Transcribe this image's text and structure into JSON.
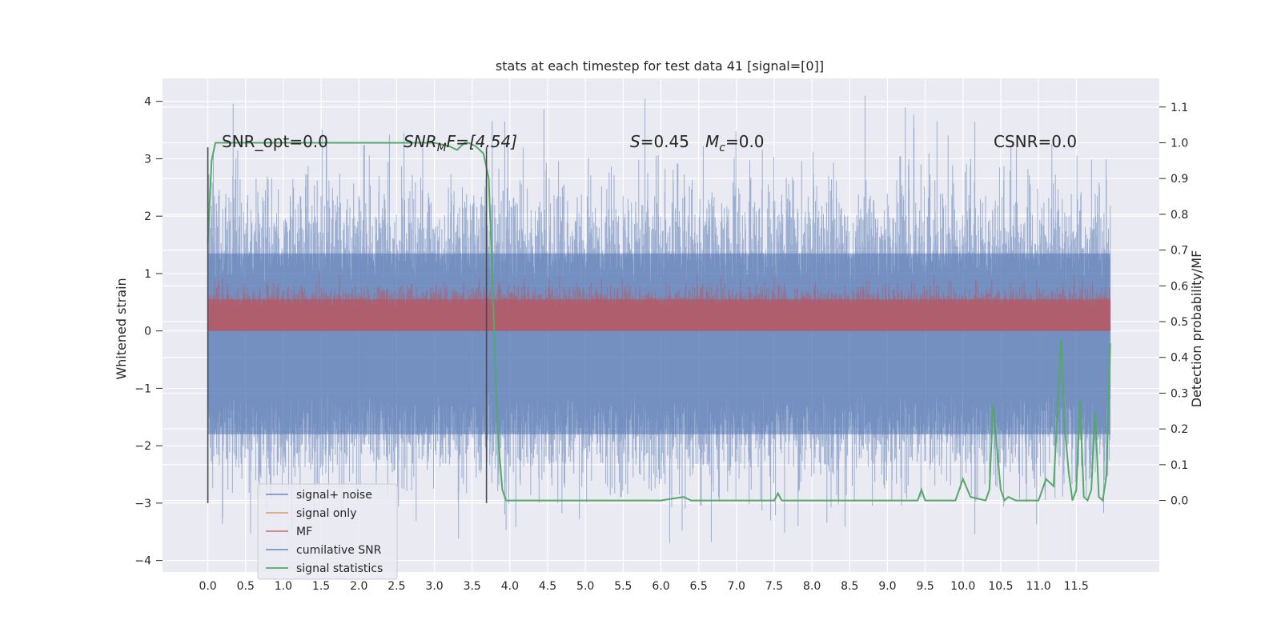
{
  "chart_data": {
    "type": "line",
    "title": "stats at each timestep for test data 41 [signal=[0]]",
    "xlabel": "",
    "ylabel": "Whitened strain",
    "ylabel_right": "Detection probability/MF",
    "xlim": [
      -0.6,
      12.6
    ],
    "ylim": [
      -4.2,
      4.4
    ],
    "ylim_right": [
      -0.2,
      1.18
    ],
    "x_ticks": [
      "0.0",
      "0.5",
      "1.0",
      "1.5",
      "2.0",
      "2.5",
      "3.0",
      "3.5",
      "4.0",
      "4.5",
      "5.0",
      "5.5",
      "6.0",
      "6.5",
      "7.0",
      "7.5",
      "8.0",
      "8.5",
      "9.0",
      "9.5",
      "10.0",
      "10.5",
      "11.0",
      "11.5"
    ],
    "y_ticks": [
      "4",
      "3",
      "2",
      "1",
      "0",
      "−1",
      "−2",
      "−3",
      "−4"
    ],
    "y_ticks_right": [
      "1.1",
      "1.0",
      "0.9",
      "0.8",
      "0.7",
      "0.6",
      "0.5",
      "0.4",
      "0.3",
      "0.2",
      "0.1",
      "0.0"
    ],
    "grid": true,
    "legend_position": "lower-left",
    "annotations": {
      "snr_opt": "SNR_opt=0.0",
      "snr_mf_sym": "SNR",
      "snr_mf_sub": "M",
      "snr_mf_rest": "F=[4.54]",
      "s_sym": "S",
      "s_val": "=0.45",
      "mc_sym": "M",
      "mc_sub": "c",
      "mc_val": "=0.0",
      "csnr": "CSNR=0.0"
    },
    "vlines": [
      0.0,
      3.69
    ],
    "series": [
      {
        "name": "signal+ noise",
        "color": "#4c72b0",
        "kind": "noise",
        "x_range": [
          0.0,
          11.95
        ],
        "band_lower": -1.8,
        "band_upper": 1.35,
        "max": 4.1,
        "min": -3.9
      },
      {
        "name": "signal only",
        "color": "#dd8452",
        "kind": "flat",
        "x_range": [
          0.0,
          11.95
        ],
        "value": 0.0
      },
      {
        "name": "MF",
        "color": "#c44e52",
        "kind": "noise",
        "x_range": [
          0.0,
          11.95
        ],
        "band_lower": 0.0,
        "band_upper": 0.55,
        "max": 1.0,
        "min": 0.0
      },
      {
        "name": "cumilative SNR",
        "color": "#4c72b0",
        "kind": "flat",
        "x_range": [
          0.0,
          11.95
        ],
        "value": 0.0
      },
      {
        "name": "signal statistics",
        "color": "#55a868",
        "axis": "right",
        "x": [
          0.0,
          0.05,
          0.1,
          0.2,
          0.5,
          1.0,
          2.0,
          3.0,
          3.2,
          3.3,
          3.4,
          3.45,
          3.55,
          3.65,
          3.72,
          3.78,
          3.82,
          3.85,
          3.9,
          3.95,
          4.0,
          4.2,
          4.5,
          5.0,
          6.0,
          6.3,
          6.4,
          6.5,
          6.6,
          6.8,
          7.5,
          7.55,
          7.6,
          7.7,
          8.0,
          9.0,
          9.4,
          9.45,
          9.5,
          9.6,
          9.9,
          10.0,
          10.1,
          10.3,
          10.35,
          10.4,
          10.5,
          10.55,
          10.6,
          10.7,
          10.8,
          11.0,
          11.1,
          11.2,
          11.3,
          11.35,
          11.4,
          11.45,
          11.5,
          11.55,
          11.6,
          11.65,
          11.7,
          11.75,
          11.8,
          11.85,
          11.9,
          11.95
        ],
        "y": [
          0.72,
          0.95,
          1.0,
          1.0,
          1.0,
          1.0,
          1.0,
          1.0,
          0.99,
          0.98,
          1.0,
          1.0,
          0.99,
          0.97,
          0.9,
          0.55,
          0.3,
          0.16,
          0.03,
          0.0,
          0.0,
          0.0,
          0.0,
          0.0,
          0.0,
          0.01,
          0.0,
          0.0,
          0.0,
          0.0,
          0.0,
          0.02,
          0.0,
          0.0,
          0.0,
          0.0,
          0.0,
          0.03,
          0.0,
          0.0,
          0.0,
          0.06,
          0.01,
          0.0,
          0.03,
          0.27,
          0.03,
          0.0,
          0.01,
          0.0,
          0.0,
          0.0,
          0.06,
          0.04,
          0.45,
          0.2,
          0.08,
          0.0,
          0.03,
          0.28,
          0.01,
          0.0,
          0.03,
          0.25,
          0.01,
          0.0,
          0.07,
          0.44
        ]
      }
    ]
  }
}
